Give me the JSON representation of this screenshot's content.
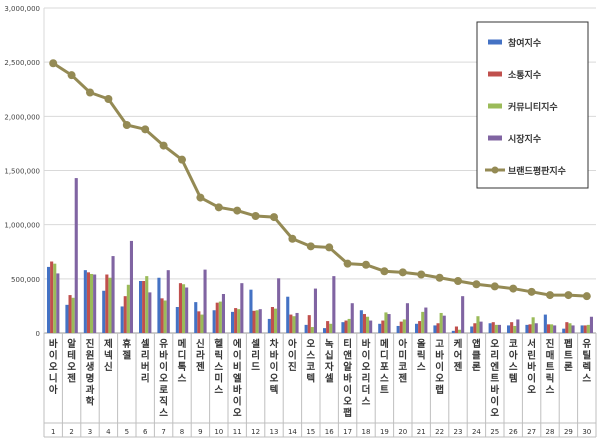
{
  "chart_data": {
    "type": "bar",
    "y_ticks": [
      "0",
      "500,000",
      "1,000,000",
      "1,500,000",
      "2,000,000",
      "2,500,000",
      "3,000,000"
    ],
    "ylim": [
      0,
      3000000
    ],
    "grid": true,
    "legend_position": "top-right",
    "categories": [
      "바이오니아",
      "알테오젠",
      "진원생명과학",
      "제넥신",
      "휴젤",
      "셀리버리",
      "유바이오로직스",
      "메디톡스",
      "신라젠",
      "헬릭스미스",
      "에이비엘바이오",
      "셀리드",
      "차바이오텍",
      "아이진",
      "오스코텍",
      "녹십자셀",
      "티앤알바이오팹",
      "바이오리더스",
      "메디포스트",
      "아미코젠",
      "올릭스",
      "고바이오랩",
      "케어젠",
      "앱클론",
      "오리엔트바이오",
      "코아스템",
      "서린바이오",
      "진매트릭스",
      "펩트론",
      "유틸렉스"
    ],
    "ranks": [
      "1",
      "2",
      "3",
      "4",
      "5",
      "6",
      "7",
      "8",
      "9",
      "10",
      "11",
      "12",
      "13",
      "14",
      "15",
      "16",
      "17",
      "18",
      "19",
      "20",
      "21",
      "22",
      "23",
      "24",
      "25",
      "26",
      "27",
      "28",
      "29",
      "30"
    ],
    "series": [
      {
        "name": "참여지수",
        "kind": "bar",
        "color": "#4472C4",
        "values": [
          610000,
          260000,
          580000,
          390000,
          245000,
          480000,
          510000,
          240000,
          285000,
          210000,
          195000,
          400000,
          130000,
          335000,
          75000,
          45000,
          100000,
          210000,
          85000,
          65000,
          85000,
          70000,
          20000,
          60000,
          90000,
          70000,
          75000,
          170000,
          40000,
          70000
        ]
      },
      {
        "name": "소통지수",
        "kind": "bar",
        "color": "#C0504D",
        "values": [
          660000,
          350000,
          560000,
          540000,
          340000,
          480000,
          320000,
          460000,
          200000,
          280000,
          230000,
          205000,
          240000,
          170000,
          165000,
          110000,
          115000,
          175000,
          115000,
          105000,
          110000,
          90000,
          60000,
          90000,
          100000,
          100000,
          80000,
          80000,
          100000,
          70000
        ]
      },
      {
        "name": "커뮤니티지수",
        "kind": "bar",
        "color": "#9BBB59",
        "values": [
          640000,
          325000,
          545000,
          510000,
          445000,
          525000,
          300000,
          450000,
          170000,
          290000,
          220000,
          210000,
          225000,
          155000,
          55000,
          85000,
          130000,
          150000,
          190000,
          125000,
          195000,
          185000,
          30000,
          155000,
          75000,
          65000,
          145000,
          80000,
          90000,
          75000
        ]
      },
      {
        "name": "시장지수",
        "kind": "bar",
        "color": "#8064A2",
        "values": [
          550000,
          1430000,
          540000,
          710000,
          850000,
          375000,
          580000,
          420000,
          585000,
          360000,
          460000,
          220000,
          505000,
          185000,
          410000,
          525000,
          275000,
          115000,
          175000,
          275000,
          235000,
          160000,
          340000,
          105000,
          75000,
          125000,
          90000,
          70000,
          70000,
          150000
        ]
      },
      {
        "name": "브랜드평판지수",
        "kind": "line",
        "color": "#948A54",
        "values": [
          2490000,
          2380000,
          2220000,
          2160000,
          1920000,
          1880000,
          1730000,
          1600000,
          1250000,
          1160000,
          1130000,
          1080000,
          1070000,
          870000,
          800000,
          790000,
          640000,
          630000,
          570000,
          560000,
          540000,
          510000,
          480000,
          450000,
          430000,
          410000,
          380000,
          350000,
          350000,
          340000
        ]
      }
    ]
  }
}
